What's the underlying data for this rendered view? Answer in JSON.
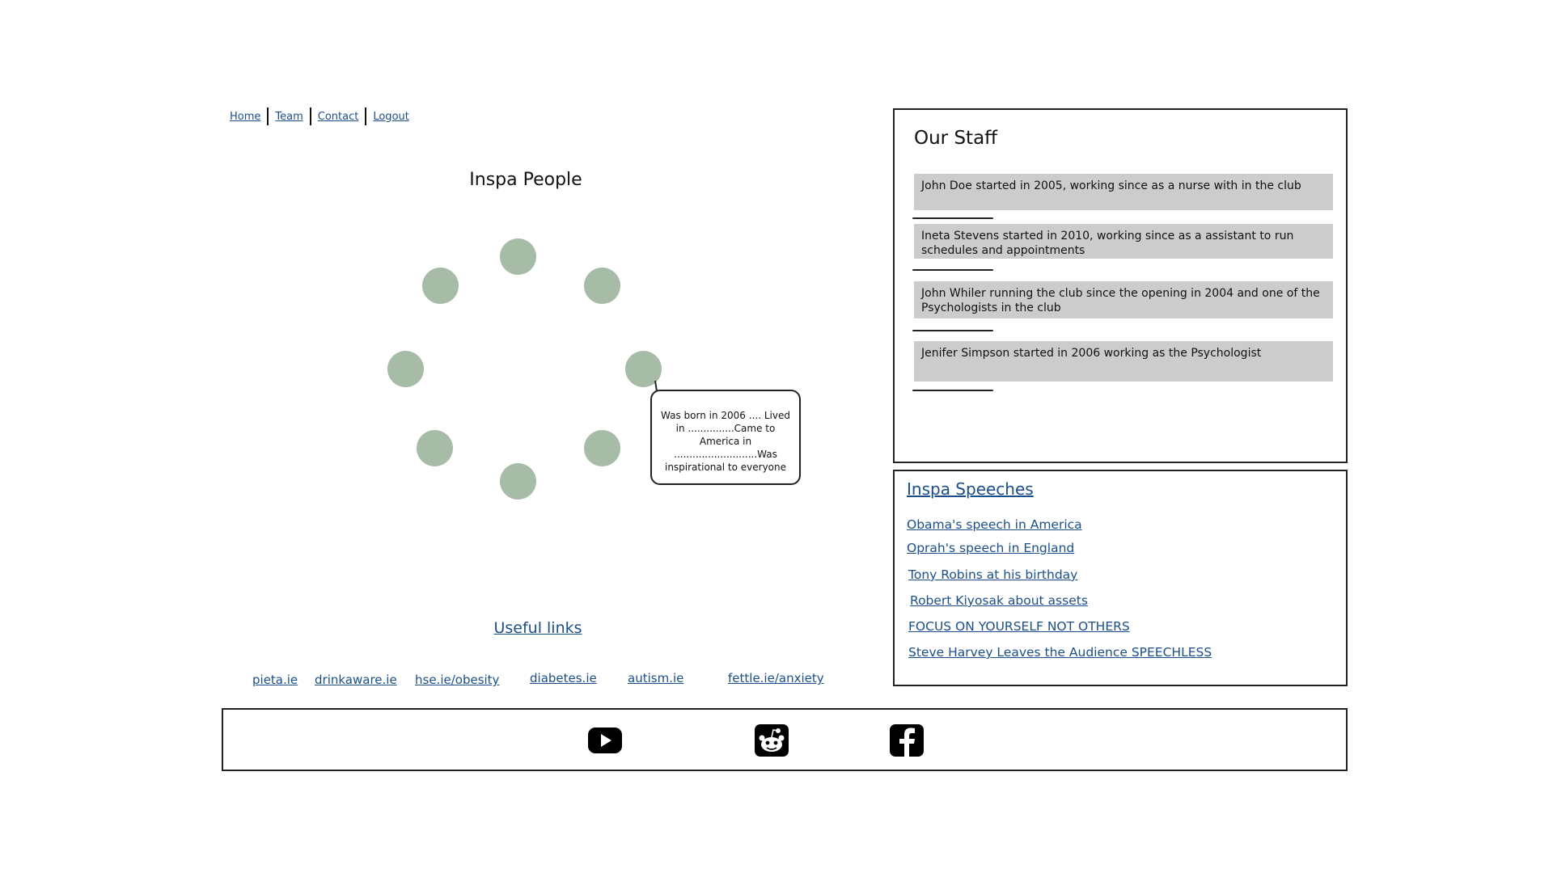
{
  "nav": {
    "items": [
      "Home",
      "Team",
      "Contact",
      "Logout"
    ]
  },
  "people": {
    "title": "Inspa People",
    "bubble_text": "Was born in 2006 .... Lived in ...............Came to America in ...........................Was inspirational to everyone"
  },
  "useful_links": {
    "title": "Useful links",
    "links": [
      "pieta.ie",
      "drinkaware.ie",
      "hse.ie/obesity",
      "diabetes.ie",
      "autism.ie",
      "fettle.ie/anxiety"
    ]
  },
  "staff": {
    "title": "Our Staff",
    "items": [
      "John Doe started in 2005, working since as a nurse with in the club",
      "Ineta Stevens started in 2010, working since as a assistant to run schedules and appointments",
      "John Whiler running the club since the opening in 2004 and one of the Psychologists in the club",
      "Jenifer Simpson started in 2006 working as the Psychologist"
    ]
  },
  "speeches": {
    "title": "Inspa Speeches",
    "items": [
      "Obama's speech in America",
      "Oprah's speech in England",
      "Tony Robins at his birthday",
      "Robert Kiyosak about assets",
      "FOCUS ON YOURSELF NOT OTHERS",
      "Steve Harvey Leaves the Audience SPEECHLESS"
    ]
  },
  "footer": {
    "icons": [
      "youtube-icon",
      "reddit-icon",
      "facebook-icon"
    ]
  },
  "colors": {
    "link": "#1b4f8a",
    "person_dot": "#a6bca6",
    "staff_item_bg": "#cccccc"
  }
}
